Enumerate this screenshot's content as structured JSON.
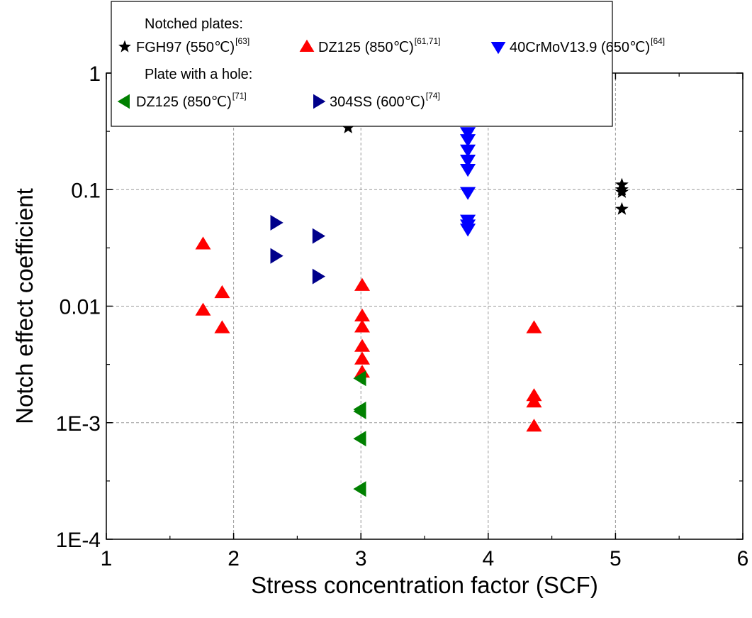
{
  "chart_data": {
    "type": "scatter",
    "xlabel": "Stress concentration factor (SCF)",
    "ylabel": "Notch effect coefficient",
    "xlim": [
      1,
      6
    ],
    "ylim": [
      0.0001,
      1
    ],
    "yscale": "log",
    "x_ticks": [
      {
        "value": 1,
        "label": "1"
      },
      {
        "value": 2,
        "label": "2"
      },
      {
        "value": 3,
        "label": "3"
      },
      {
        "value": 4,
        "label": "4"
      },
      {
        "value": 5,
        "label": "5"
      },
      {
        "value": 6,
        "label": "6"
      }
    ],
    "y_ticks": [
      {
        "value": 0.0001,
        "label": "1E-4"
      },
      {
        "value": 0.001,
        "label": "1E-3"
      },
      {
        "value": 0.01,
        "label": "0.01"
      },
      {
        "value": 0.1,
        "label": "0.1"
      },
      {
        "value": 1,
        "label": "1"
      }
    ],
    "grid": "dashed, major ticks",
    "legend_position": "top",
    "legend_groups": [
      {
        "heading": "Notched plates:",
        "series_indices": [
          0,
          1,
          2
        ]
      },
      {
        "heading": "Plate with a hole:",
        "series_indices": [
          3,
          4
        ]
      }
    ],
    "series": [
      {
        "name": "FGH97 (550℃)",
        "ref": "[63]",
        "marker": "star",
        "color": "#000000",
        "points": [
          [
            2.9,
            0.34
          ],
          [
            5.05,
            0.11
          ],
          [
            5.05,
            0.1
          ],
          [
            5.05,
            0.095
          ],
          [
            5.05,
            0.068
          ]
        ]
      },
      {
        "name": "DZ125  (850℃)",
        "ref": "[61,71]",
        "marker": "triangle-up",
        "color": "#ff0000",
        "points": [
          [
            1.76,
            0.034
          ],
          [
            1.76,
            0.0092
          ],
          [
            1.91,
            0.013
          ],
          [
            1.91,
            0.0065
          ],
          [
            3.01,
            0.015
          ],
          [
            3.01,
            0.0082
          ],
          [
            3.01,
            0.0066
          ],
          [
            3.01,
            0.0045
          ],
          [
            3.01,
            0.0035
          ],
          [
            3.01,
            0.0027
          ],
          [
            4.36,
            0.0065
          ],
          [
            4.36,
            0.0017
          ],
          [
            4.36,
            0.0015
          ],
          [
            4.36,
            0.00093
          ]
        ]
      },
      {
        "name": "40CrMoV13.9  (650℃)",
        "ref": "[64]",
        "marker": "triangle-down",
        "color": "#0000ff",
        "points": [
          [
            3.84,
            0.31
          ],
          [
            3.84,
            0.27
          ],
          [
            3.84,
            0.22
          ],
          [
            3.84,
            0.18
          ],
          [
            3.84,
            0.15
          ],
          [
            3.84,
            0.095
          ],
          [
            3.84,
            0.055
          ],
          [
            3.84,
            0.05
          ],
          [
            3.84,
            0.046
          ]
        ]
      },
      {
        "name": "DZ125  (850℃)",
        "ref": "[71]",
        "marker": "triangle-left",
        "color": "#008000",
        "points": [
          [
            3.0,
            0.0024
          ],
          [
            3.0,
            0.0013
          ],
          [
            3.0,
            0.00125
          ],
          [
            3.0,
            0.00073
          ],
          [
            3.0,
            0.00027
          ]
        ]
      },
      {
        "name": "304SS  (600℃)",
        "ref": "[74]",
        "marker": "triangle-right",
        "color": "#00008b",
        "points": [
          [
            2.33,
            0.052
          ],
          [
            2.33,
            0.027
          ],
          [
            2.66,
            0.04
          ],
          [
            2.66,
            0.018
          ]
        ]
      }
    ]
  }
}
